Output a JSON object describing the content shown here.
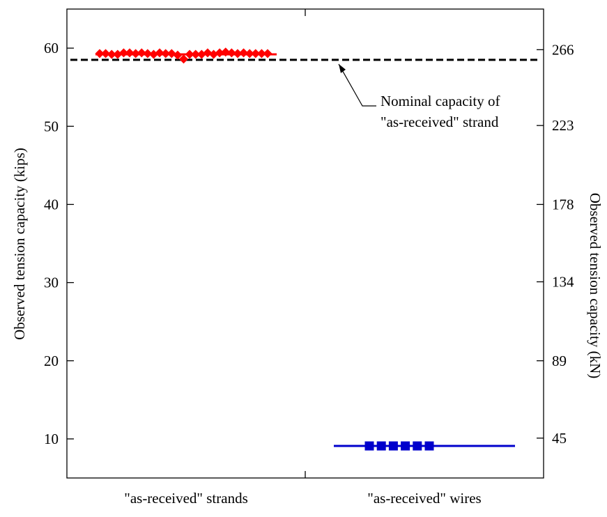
{
  "chart_data": {
    "type": "scatter",
    "categories": [
      "\"as-received\" strands",
      "\"as-received\" wires"
    ],
    "ylabel_left": "Observed tension capacity (kips)",
    "ylabel_right": "Observed tension capacity (kN)",
    "ylim": [
      5,
      65
    ],
    "yticks_left": [
      10,
      20,
      30,
      40,
      50,
      60
    ],
    "yticks_right": [
      {
        "value": 10.1,
        "label": "45"
      },
      {
        "value": 20.0,
        "label": "89"
      },
      {
        "value": 30.1,
        "label": "134"
      },
      {
        "value": 40.0,
        "label": "178"
      },
      {
        "value": 50.1,
        "label": "223"
      },
      {
        "value": 59.8,
        "label": "266"
      }
    ],
    "grid": false,
    "series": [
      {
        "name": "",
        "category": 0,
        "marker": "diamond",
        "color": "#ff0000",
        "mean": 59.2,
        "values": [
          59.3,
          59.3,
          59.2,
          59.2,
          59.4,
          59.4,
          59.3,
          59.4,
          59.3,
          59.2,
          59.4,
          59.3,
          59.3,
          59.1,
          58.6,
          59.2,
          59.2,
          59.2,
          59.4,
          59.2,
          59.4,
          59.5,
          59.4,
          59.3,
          59.4,
          59.3,
          59.3,
          59.3,
          59.3
        ]
      },
      {
        "name": "",
        "category": 1,
        "marker": "square",
        "color": "#0000cc",
        "mean": 9.1,
        "values": [
          9.1,
          9.1,
          9.1,
          9.1,
          9.1,
          9.1
        ]
      }
    ],
    "reference_line": {
      "value": 58.5,
      "style": "dashed",
      "color": "#000000",
      "label_line1": "Nominal capacity of",
      "label_line2": "\"as-received\" strand"
    }
  }
}
